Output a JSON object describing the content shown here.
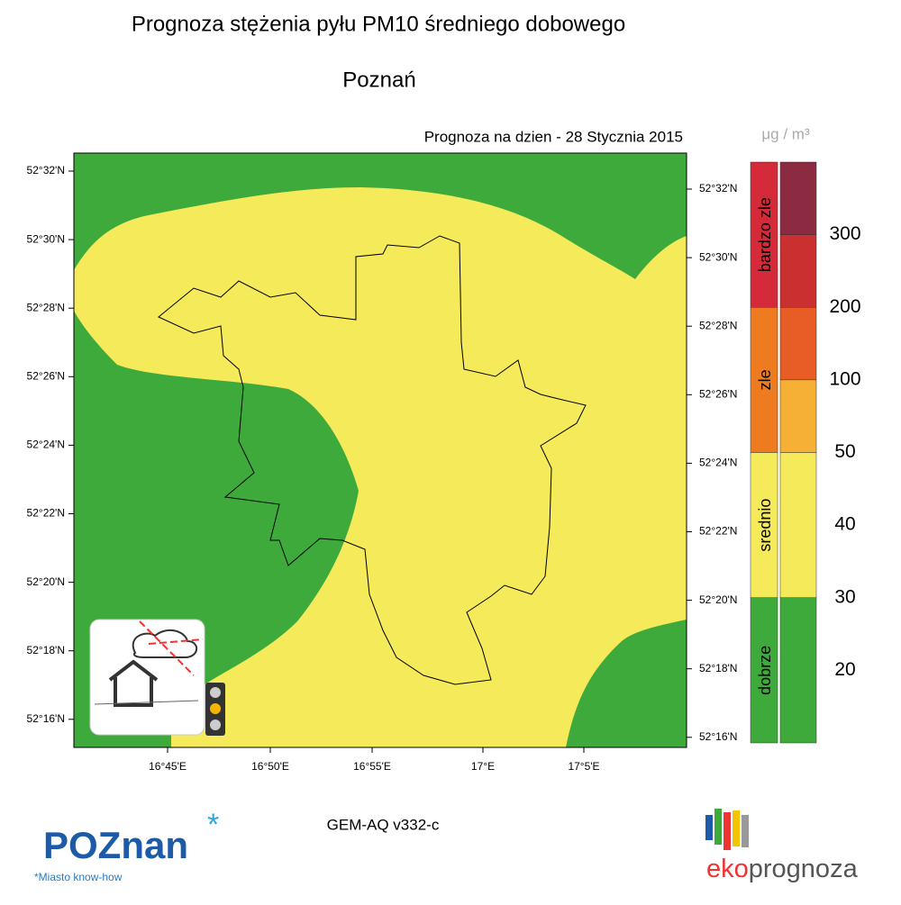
{
  "header": {
    "title": "Prognoza stężenia pyłu PM10 średniego dobowego",
    "city": "Poznań",
    "date": "Prognoza na dzien -  28 Stycznia 2015"
  },
  "map": {
    "lat_left": [
      "52°32'N",
      "52°30'N",
      "52°28'N",
      "52°26'N",
      "52°24'N",
      "52°22'N",
      "52°20'N",
      "52°18'N",
      "52°16'N"
    ],
    "lat_right": [
      "52°32'N",
      "52°30'N",
      "52°28'N",
      "52°26'N",
      "52°24'N",
      "52°22'N",
      "52°20'N",
      "52°18'N",
      "52°16'N"
    ],
    "lon": [
      "16°45'E",
      "16°50'E",
      "16°55'E",
      "17°E",
      "17°5'E"
    ]
  },
  "legend": {
    "unit": "μg / m³",
    "categories": [
      {
        "name": "bardzo zle",
        "color": "#d42a3a"
      },
      {
        "name": "zle",
        "color": "#ef7b21"
      },
      {
        "name": "srednio",
        "color": "#f5ea5a"
      },
      {
        "name": "dobrze",
        "color": "#3faa3c"
      }
    ],
    "levels": [
      "300",
      "200",
      "100",
      "50",
      "40",
      "30",
      "20"
    ],
    "bands": [
      "#8b2a40",
      "#cb3030",
      "#e85c25",
      "#f6b035",
      "#f5ea5a",
      "#3faa3c"
    ]
  },
  "footer": {
    "model": "GEM-AQ v332-c",
    "logo_left": "POZnan",
    "logo_left_tagline": "*Miasto know-how",
    "logo_right_a": "eko",
    "logo_right_b": "prognoza"
  }
}
